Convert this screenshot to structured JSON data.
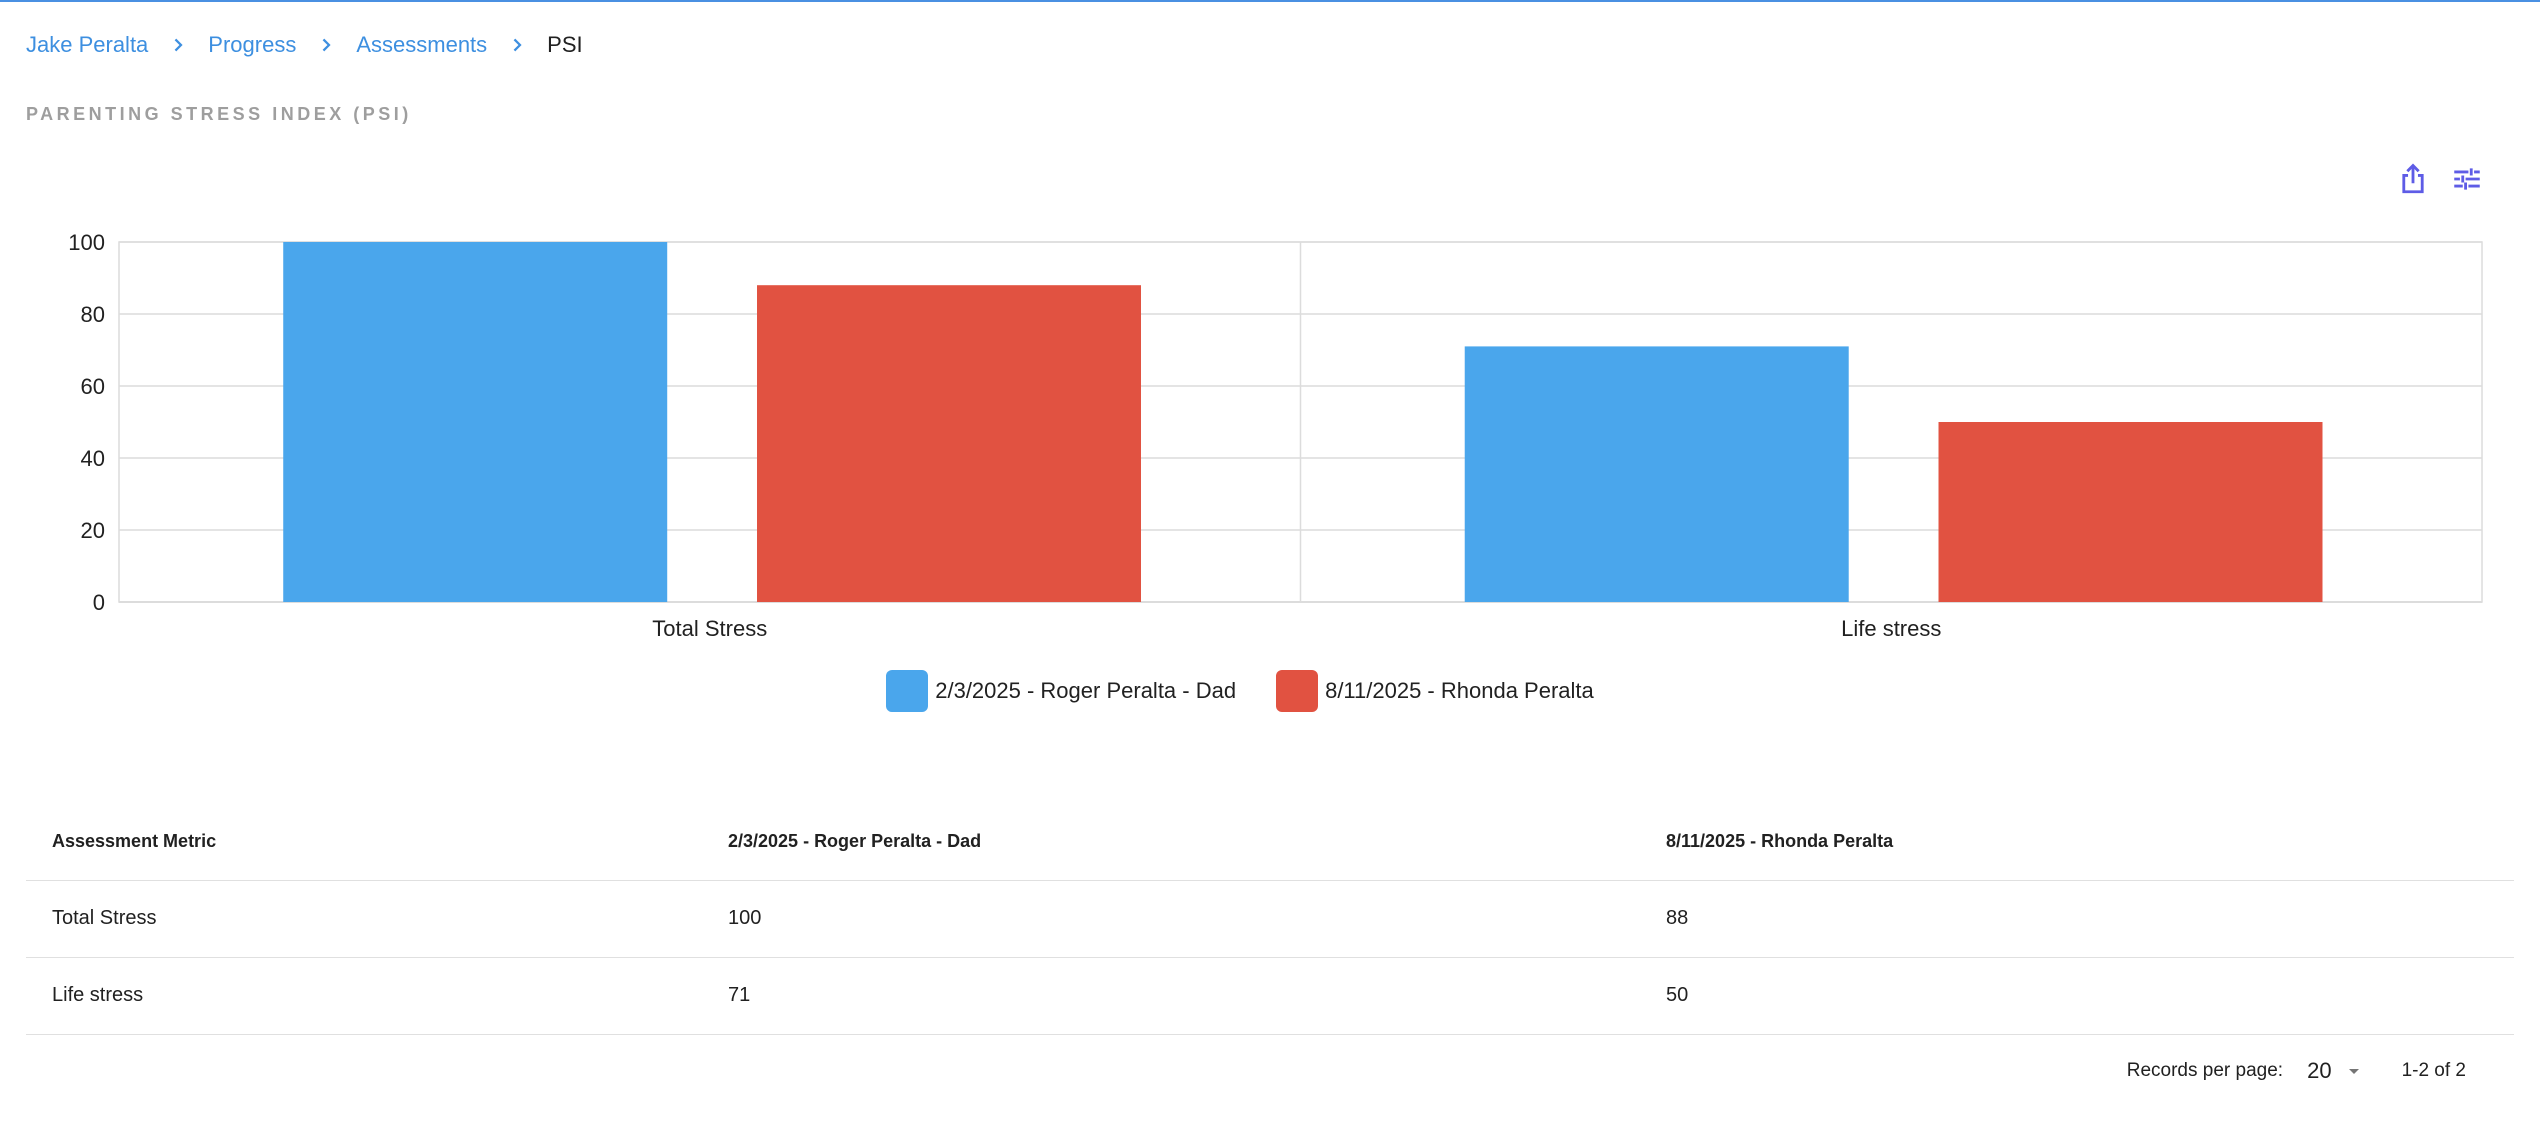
{
  "breadcrumb": {
    "items": [
      {
        "label": "Jake Peralta"
      },
      {
        "label": "Progress"
      },
      {
        "label": "Assessments"
      }
    ],
    "current": "PSI"
  },
  "page": {
    "title": "PARENTING STRESS INDEX (PSI)"
  },
  "toolbar": {
    "share_icon": "share-icon",
    "settings_icon": "tune-icon",
    "icon_color": "#5e5ce6"
  },
  "chart_data": {
    "type": "bar",
    "categories": [
      "Total Stress",
      "Life stress"
    ],
    "series": [
      {
        "name": "2/3/2025 - Roger Peralta - Dad",
        "values": [
          100,
          71
        ],
        "color": "#4aa6ec"
      },
      {
        "name": "8/11/2025 - Rhonda Peralta",
        "values": [
          88,
          50
        ],
        "color": "#e15241"
      }
    ],
    "ylim": [
      0,
      100
    ],
    "yticks": [
      0,
      20,
      40,
      60,
      80,
      100
    ],
    "grid": true,
    "legend": "bottom-center"
  },
  "table": {
    "headers": [
      "Assessment Metric",
      "2/3/2025 - Roger Peralta - Dad",
      "8/11/2025 - Rhonda Peralta"
    ],
    "rows": [
      [
        "Total Stress",
        "100",
        "88"
      ],
      [
        "Life stress",
        "71",
        "50"
      ]
    ]
  },
  "pagination": {
    "records_per_page_label": "Records per page:",
    "records_per_page": "20",
    "range": "1-2 of 2"
  }
}
